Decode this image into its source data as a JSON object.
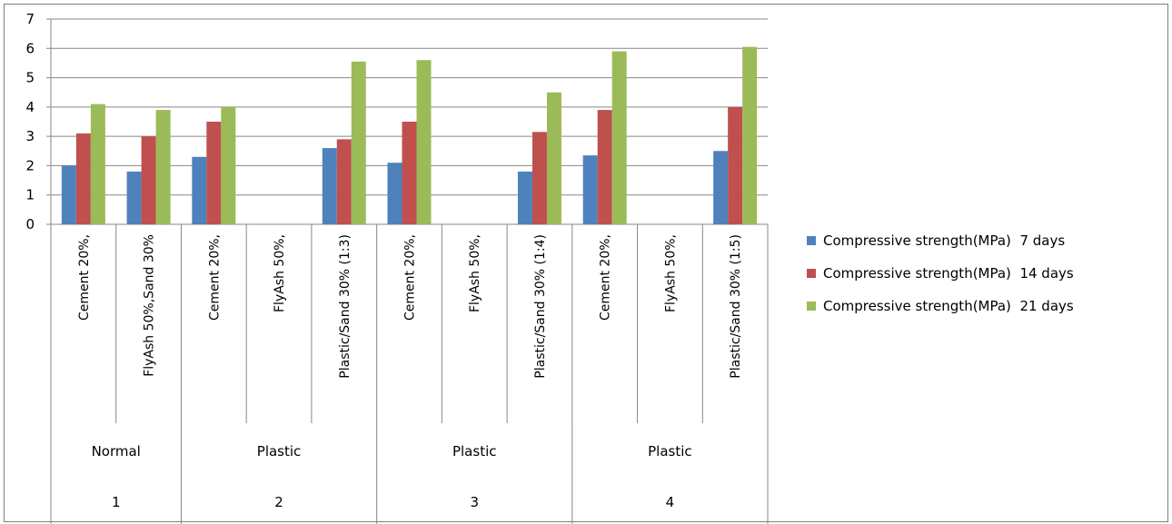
{
  "chart_data": {
    "type": "bar",
    "ylim": [
      0,
      7
    ],
    "yticks": [
      0,
      1,
      2,
      3,
      4,
      5,
      6,
      7
    ],
    "grid": true,
    "legend_position": "right",
    "categories": [
      "Cement 20%,",
      "FlyAsh 50%,Sand 30%",
      "Cement 20%,",
      "FlyAsh 50%,",
      "Plastic/Sand 30% (1:3)",
      "Cement 20%,",
      "FlyAsh 50%,",
      "Plastic/Sand 30% (1:4)",
      "Cement 20%,",
      "FlyAsh 50%,",
      "Plastic/Sand 30% (1:5)"
    ],
    "groups": [
      {
        "type_label": "Normal",
        "number": "1",
        "span": 2
      },
      {
        "type_label": "Plastic",
        "number": "2",
        "span": 3
      },
      {
        "type_label": "Plastic",
        "number": "3",
        "span": 3
      },
      {
        "type_label": "Plastic",
        "number": "4",
        "span": 3
      }
    ],
    "series": [
      {
        "name": "Compressive strength(MPa)  7 days",
        "color": "#4f81bd",
        "values": [
          2.0,
          1.8,
          2.3,
          null,
          2.6,
          2.1,
          null,
          1.8,
          2.35,
          null,
          2.5
        ]
      },
      {
        "name": "Compressive strength(MPa)  14 days",
        "color": "#c0504d",
        "values": [
          3.1,
          3.0,
          3.5,
          null,
          2.9,
          3.5,
          null,
          3.15,
          3.9,
          null,
          4.0
        ]
      },
      {
        "name": "Compressive strength(MPa)  21 days",
        "color": "#9bbb59",
        "values": [
          4.1,
          3.9,
          4.0,
          null,
          5.55,
          5.6,
          null,
          4.5,
          5.9,
          null,
          6.05
        ]
      }
    ]
  }
}
